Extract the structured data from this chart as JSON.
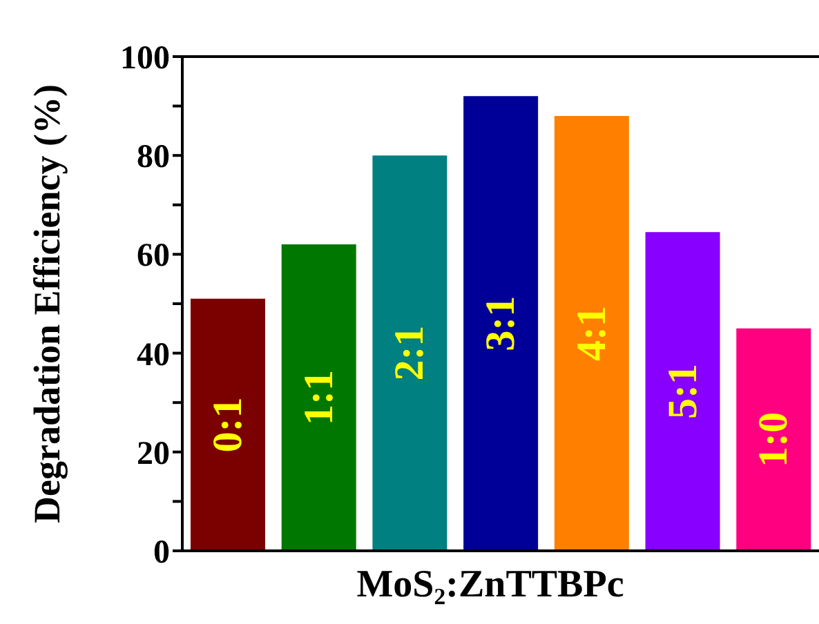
{
  "chart_data": {
    "type": "bar",
    "xlabel": "MoS₂:ZnTTBPc",
    "ylabel": "Degradation Efficiency (%)",
    "categories": [
      "0:1",
      "1:1",
      "2:1",
      "3:1",
      "4:1",
      "5:1",
      "1:0"
    ],
    "values": [
      51,
      62,
      80,
      92,
      88,
      64.5,
      45
    ],
    "colors": [
      "#7b0000",
      "#007800",
      "#008080",
      "#000099",
      "#ff8000",
      "#8800ff",
      "#ff0080"
    ],
    "ylim": [
      0,
      100
    ],
    "yticks": [
      0,
      {
        "value": 10,
        "label": null
      },
      20,
      {
        "value": 30,
        "label": null
      },
      40,
      {
        "value": 50,
        "label": null
      },
      60,
      {
        "value": 70,
        "label": null
      },
      80,
      {
        "value": 90,
        "label": null
      },
      100
    ],
    "grid": false,
    "legend": false
  }
}
